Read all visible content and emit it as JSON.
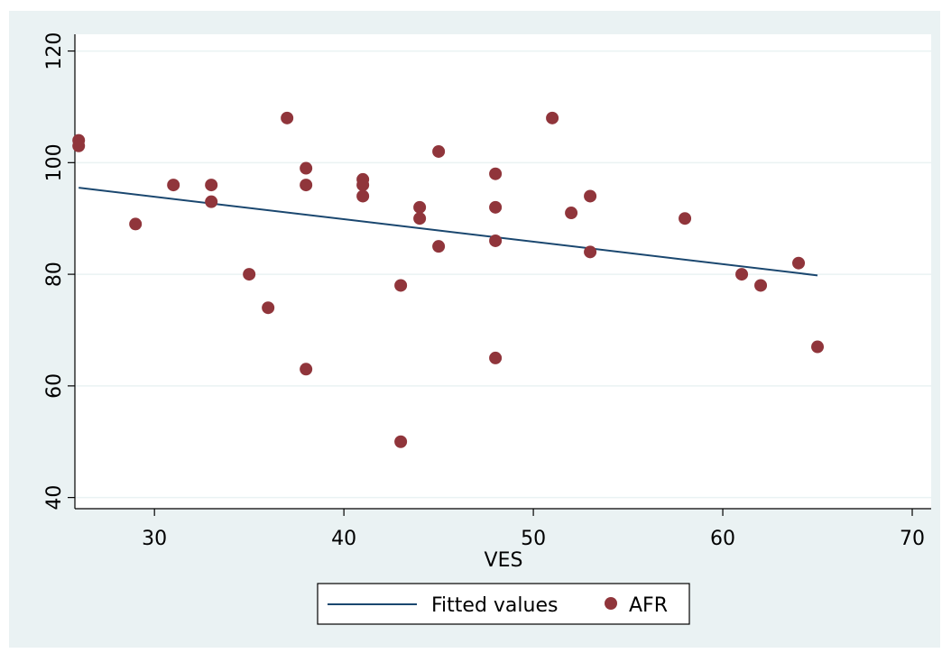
{
  "chart_data": {
    "type": "scatter",
    "title": "",
    "xlabel": "VES",
    "ylabel": "",
    "xlim": [
      25.8,
      71
    ],
    "ylim": [
      38,
      123
    ],
    "xticks": [
      30,
      40,
      50,
      60,
      70
    ],
    "yticks": [
      40,
      60,
      80,
      100,
      120
    ],
    "x_tick_labels": [
      "30",
      "40",
      "50",
      "60",
      "70"
    ],
    "y_tick_labels": [
      "40",
      "60",
      "80",
      "100",
      "120"
    ],
    "grid": "horizontal",
    "legend_position": "bottom",
    "series": [
      {
        "name": "Fitted values",
        "kind": "line",
        "color": "#1a476f",
        "points": [
          [
            26,
            95.5
          ],
          [
            65,
            79.8
          ]
        ]
      },
      {
        "name": "AFR",
        "kind": "scatter",
        "color": "#90353b",
        "points": [
          [
            26,
            104
          ],
          [
            26,
            103
          ],
          [
            29,
            89
          ],
          [
            31,
            96
          ],
          [
            33,
            96
          ],
          [
            33,
            93
          ],
          [
            35,
            80
          ],
          [
            36,
            74
          ],
          [
            37,
            108
          ],
          [
            38,
            99
          ],
          [
            38,
            96
          ],
          [
            38,
            63
          ],
          [
            41,
            97
          ],
          [
            41,
            96
          ],
          [
            41,
            94
          ],
          [
            43,
            78
          ],
          [
            43,
            50
          ],
          [
            44,
            92
          ],
          [
            44,
            90
          ],
          [
            45,
            102
          ],
          [
            45,
            85
          ],
          [
            48,
            98
          ],
          [
            48,
            92
          ],
          [
            48,
            86
          ],
          [
            48,
            65
          ],
          [
            51,
            108
          ],
          [
            52,
            91
          ],
          [
            53,
            94
          ],
          [
            53,
            84
          ],
          [
            58,
            90
          ],
          [
            61,
            80
          ],
          [
            62,
            78
          ],
          [
            64,
            82
          ],
          [
            65,
            67
          ]
        ]
      }
    ]
  },
  "legend": {
    "fitted_label": "Fitted values",
    "afr_label": "AFR"
  },
  "colors": {
    "outer_background": "#eaf2f3",
    "plot_background": "#ffffff",
    "grid": "#eaf2f3",
    "fit_line": "#1a476f",
    "marker": "#90353b"
  }
}
